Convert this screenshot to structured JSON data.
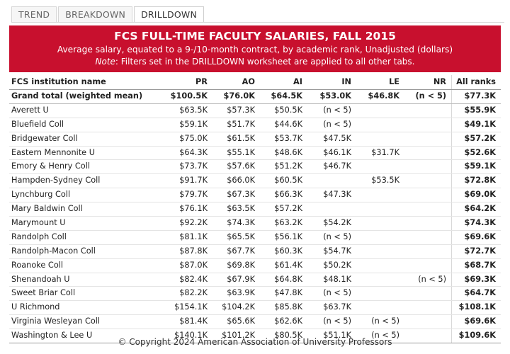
{
  "tabs": [
    {
      "label": "TREND",
      "active": false
    },
    {
      "label": "BREAKDOWN",
      "active": false
    },
    {
      "label": "DRILLDOWN",
      "active": true
    }
  ],
  "banner": {
    "title": "FCS FULL-TIME FACULTY SALARIES, FALL 2015",
    "subtitle": "Average salary, equated to a 9-/10-month contract, by academic rank, Unadjusted (dollars)",
    "note_label": "Note",
    "note_text": ": Filters set in the DRILLDOWN worksheet are applied to all other tabs."
  },
  "columns": [
    "FCS institution name",
    "PR",
    "AO",
    "AI",
    "IN",
    "LE",
    "NR",
    "All ranks"
  ],
  "grand_total": [
    "Grand total (weighted mean)",
    "$100.5K",
    "$76.0K",
    "$64.5K",
    "$53.0K",
    "$46.8K",
    "(n < 5)",
    "$77.3K"
  ],
  "rows": [
    [
      "Averett U",
      "$63.5K",
      "$57.3K",
      "$50.5K",
      "(n < 5)",
      "",
      "",
      "$55.9K"
    ],
    [
      "Bluefield Coll",
      "$59.1K",
      "$51.7K",
      "$44.6K",
      "(n < 5)",
      "",
      "",
      "$49.1K"
    ],
    [
      "Bridgewater Coll",
      "$75.0K",
      "$61.5K",
      "$53.7K",
      "$47.5K",
      "",
      "",
      "$57.2K"
    ],
    [
      "Eastern Mennonite U",
      "$64.3K",
      "$55.1K",
      "$48.6K",
      "$46.1K",
      "$31.7K",
      "",
      "$52.6K"
    ],
    [
      "Emory & Henry Coll",
      "$73.7K",
      "$57.6K",
      "$51.2K",
      "$46.7K",
      "",
      "",
      "$59.1K"
    ],
    [
      "Hampden-Sydney Coll",
      "$91.7K",
      "$66.0K",
      "$60.5K",
      "",
      "$53.5K",
      "",
      "$72.8K"
    ],
    [
      "Lynchburg Coll",
      "$79.7K",
      "$67.3K",
      "$66.3K",
      "$47.3K",
      "",
      "",
      "$69.0K"
    ],
    [
      "Mary Baldwin Coll",
      "$76.1K",
      "$63.5K",
      "$57.2K",
      "",
      "",
      "",
      "$64.2K"
    ],
    [
      "Marymount U",
      "$92.2K",
      "$74.3K",
      "$63.2K",
      "$54.2K",
      "",
      "",
      "$74.3K"
    ],
    [
      "Randolph Coll",
      "$81.1K",
      "$65.5K",
      "$56.1K",
      "(n < 5)",
      "",
      "",
      "$69.6K"
    ],
    [
      "Randolph-Macon Coll",
      "$87.8K",
      "$67.7K",
      "$60.3K",
      "$54.7K",
      "",
      "",
      "$72.7K"
    ],
    [
      "Roanoke Coll",
      "$87.0K",
      "$69.8K",
      "$61.4K",
      "$50.2K",
      "",
      "",
      "$68.7K"
    ],
    [
      "Shenandoah U",
      "$82.4K",
      "$67.9K",
      "$64.8K",
      "$48.1K",
      "",
      "(n < 5)",
      "$69.3K"
    ],
    [
      "Sweet Briar Coll",
      "$82.2K",
      "$63.9K",
      "$47.8K",
      "(n < 5)",
      "",
      "",
      "$64.7K"
    ],
    [
      "U Richmond",
      "$154.1K",
      "$104.2K",
      "$85.8K",
      "$63.7K",
      "",
      "",
      "$108.1K"
    ],
    [
      "Virginia Wesleyan Coll",
      "$81.4K",
      "$65.6K",
      "$62.6K",
      "(n < 5)",
      "(n < 5)",
      "",
      "$69.6K"
    ],
    [
      "Washington & Lee U",
      "$140.1K",
      "$101.2K",
      "$80.5K",
      "$51.1K",
      "(n < 5)",
      "",
      "$109.6K"
    ]
  ],
  "copyright": "© Copyright 2024 American Association of University Professors",
  "colors": {
    "banner": "#c8102e",
    "banner_text": "#ffffff"
  }
}
